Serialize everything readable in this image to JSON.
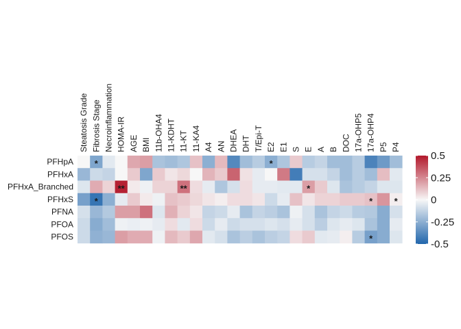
{
  "chart_data": {
    "type": "heatmap",
    "title": "",
    "rows": [
      "PFHpA",
      "PFHxA",
      "PFHxA_Branched",
      "PFHxS",
      "PFNA",
      "PFOA",
      "PFOS"
    ],
    "columns": [
      "Steatosis Grade",
      "Fibrosis Stage",
      "Necroinflammation",
      "HOMA-IR",
      "AGE",
      "BMI",
      "11b-OHA4",
      "11-KDHT",
      "11-KT",
      "11-KA4",
      "A4",
      "AN",
      "DHEA",
      "DHT",
      "T/Epi-T",
      "E2",
      "E1",
      "S",
      "E",
      "A",
      "B",
      "DOC",
      "17a-OHP5",
      "17a-OHP4",
      "P5",
      "P4"
    ],
    "values": [
      [
        0.0,
        -0.28,
        -0.05,
        0.0,
        0.18,
        0.2,
        -0.18,
        -0.2,
        -0.17,
        0.12,
        -0.25,
        0.14,
        -0.38,
        -0.2,
        -0.15,
        -0.25,
        -0.17,
        0.1,
        -0.15,
        -0.12,
        -0.2,
        -0.2,
        -0.15,
        -0.4,
        -0.32,
        -0.2
      ],
      [
        -0.22,
        -0.1,
        -0.12,
        0.0,
        0.1,
        -0.28,
        0.1,
        0.04,
        0.07,
        0.0,
        0.15,
        0.1,
        0.33,
        0.05,
        -0.04,
        0.0,
        0.28,
        -0.42,
        -0.08,
        -0.08,
        -0.12,
        -0.2,
        -0.15,
        -0.2,
        0.13,
        -0.05
      ],
      [
        -0.06,
        0.17,
        0.08,
        0.48,
        0.03,
        -0.02,
        0.08,
        0.08,
        0.3,
        0.06,
        -0.04,
        -0.17,
        -0.08,
        0.06,
        -0.04,
        -0.04,
        -0.05,
        -0.05,
        0.2,
        0.1,
        -0.06,
        -0.18,
        -0.15,
        -0.12,
        -0.06,
        -0.06
      ],
      [
        -0.3,
        -0.45,
        -0.25,
        -0.04,
        0.1,
        0.03,
        -0.02,
        0.12,
        0.1,
        0.07,
        0.04,
        0.02,
        0.06,
        0.06,
        0.04,
        -0.1,
        -0.04,
        0.12,
        0.04,
        0.08,
        0.08,
        0.1,
        0.1,
        0.12,
        0.22,
        0.02
      ],
      [
        -0.08,
        -0.22,
        -0.16,
        0.2,
        0.2,
        0.3,
        -0.06,
        0.16,
        0.08,
        0.04,
        -0.12,
        -0.1,
        -0.04,
        -0.18,
        -0.12,
        -0.14,
        -0.18,
        -0.02,
        -0.08,
        -0.18,
        -0.12,
        -0.1,
        -0.15,
        -0.16,
        -0.26,
        -0.08
      ],
      [
        -0.1,
        -0.26,
        -0.2,
        -0.02,
        -0.03,
        -0.02,
        -0.04,
        0.06,
        -0.05,
        0.06,
        -0.1,
        -0.04,
        -0.1,
        -0.08,
        -0.08,
        -0.06,
        -0.08,
        -0.04,
        -0.08,
        -0.14,
        -0.06,
        -0.04,
        -0.06,
        -0.18,
        -0.26,
        -0.04
      ],
      [
        -0.1,
        -0.24,
        -0.22,
        0.2,
        0.17,
        0.17,
        -0.02,
        0.14,
        0.1,
        0.18,
        -0.05,
        -0.08,
        -0.18,
        -0.14,
        -0.18,
        -0.14,
        -0.12,
        0.06,
        0.1,
        -0.05,
        -0.04,
        0.02,
        -0.15,
        -0.3,
        -0.26,
        -0.06
      ]
    ],
    "annotations": [
      {
        "row": "PFHpA",
        "column": "Fibrosis Stage",
        "text": "*"
      },
      {
        "row": "PFHpA",
        "column": "E2",
        "text": "*"
      },
      {
        "row": "PFHxA_Branched",
        "column": "HOMA-IR",
        "text": "**"
      },
      {
        "row": "PFHxA_Branched",
        "column": "11-KT",
        "text": "**"
      },
      {
        "row": "PFHxA_Branched",
        "column": "E",
        "text": "*"
      },
      {
        "row": "PFHxS",
        "column": "Fibrosis Stage",
        "text": "*"
      },
      {
        "row": "PFHxS",
        "column": "17a-OHP4",
        "text": "*"
      },
      {
        "row": "PFHxS",
        "column": "P4",
        "text": "*"
      },
      {
        "row": "PFOS",
        "column": "17a-OHP4",
        "text": "*"
      }
    ],
    "color_scale": {
      "range": [
        -0.5,
        0.5
      ],
      "low": "#2166ac",
      "mid": "#f7f7f7",
      "high": "#b2182b",
      "ticks": [
        "0.5",
        "0.25",
        "0",
        "-0.25",
        "-0.5"
      ],
      "tick_values": [
        0.5,
        0.25,
        0,
        -0.25,
        -0.5
      ]
    },
    "legend_position": "right"
  }
}
